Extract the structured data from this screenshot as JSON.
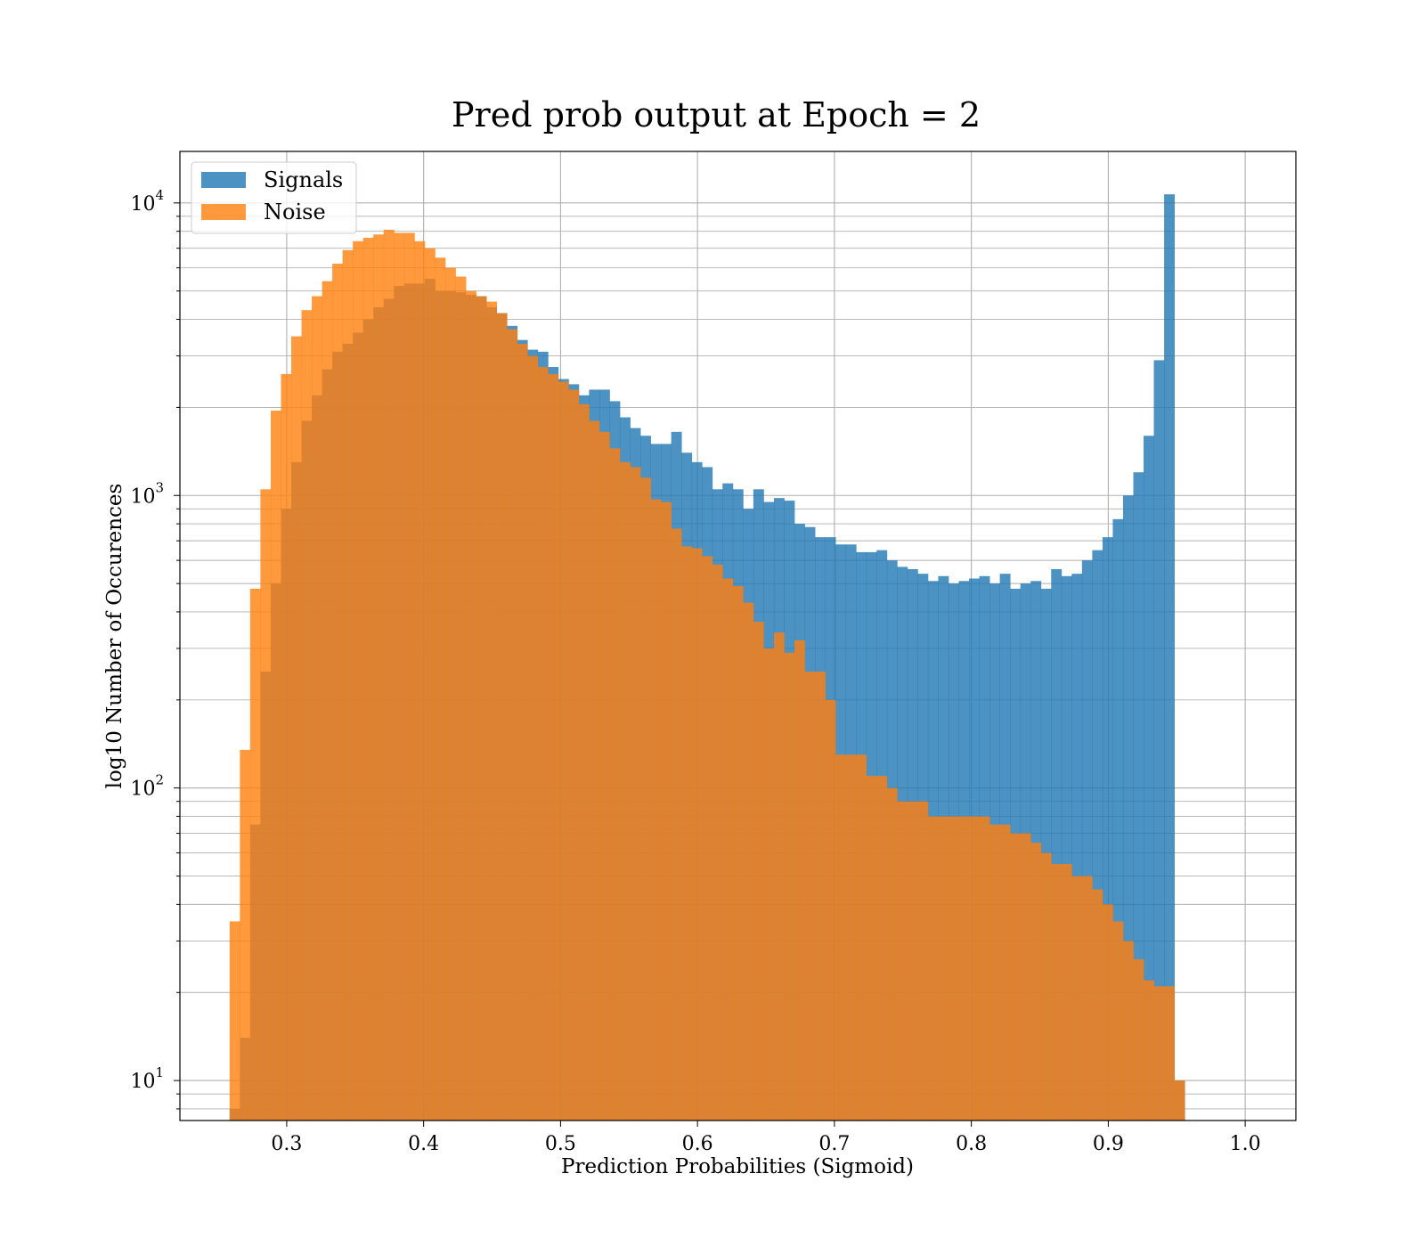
{
  "chart_data": {
    "type": "bar",
    "title": "Pred prob output at Epoch = 2",
    "xlabel": "Prediction Probabilities (Sigmoid)",
    "ylabel": "log10 Number of Occurences",
    "yscale": "log",
    "xlim": [
      0.222,
      1.037
    ],
    "ylim": [
      7.3,
      15000
    ],
    "grid": true,
    "legend_position": "top-left",
    "x_ticks": [
      "0.3",
      "0.4",
      "0.5",
      "0.6",
      "0.7",
      "0.8",
      "0.9",
      "1.0"
    ],
    "x_tick_values": [
      0.3,
      0.4,
      0.5,
      0.6,
      0.7,
      0.8,
      0.9,
      1.0
    ],
    "y_ticks": [
      {
        "value": 10,
        "base": "10",
        "exp": "1"
      },
      {
        "value": 100,
        "base": "10",
        "exp": "2"
      },
      {
        "value": 1000,
        "base": "10",
        "exp": "3"
      },
      {
        "value": 10000,
        "base": "10",
        "exp": "4"
      }
    ],
    "series": [
      {
        "name": "Signals",
        "color": "#1f77b4",
        "opacity": 0.8,
        "x_start": 0.2583,
        "bin_width": 0.0075,
        "values": [
          8,
          14,
          75,
          250,
          500,
          900,
          1300,
          1800,
          2200,
          2700,
          3100,
          3300,
          3600,
          4000,
          4400,
          4700,
          5200,
          5300,
          5300,
          5500,
          5000,
          5000,
          4950,
          4850,
          4800,
          4400,
          4200,
          3800,
          3400,
          3150,
          3100,
          2750,
          2500,
          2400,
          2200,
          2300,
          2300,
          2100,
          1850,
          1700,
          1600,
          1500,
          1500,
          1650,
          1400,
          1300,
          1250,
          1050,
          1100,
          1050,
          900,
          1050,
          950,
          980,
          960,
          800,
          780,
          720,
          720,
          680,
          680,
          640,
          640,
          650,
          600,
          570,
          560,
          540,
          510,
          530,
          500,
          510,
          520,
          530,
          500,
          540,
          480,
          500,
          510,
          480,
          560,
          530,
          540,
          600,
          650,
          720,
          830,
          1000,
          1200,
          1600,
          2900,
          10700,
          10
        ]
      },
      {
        "name": "Noise",
        "color": "#ff7f0e",
        "opacity": 0.8,
        "x_start": 0.2583,
        "bin_width": 0.0075,
        "values": [
          35,
          135,
          480,
          1050,
          1950,
          2600,
          3500,
          4300,
          4800,
          5400,
          6200,
          6900,
          7400,
          7600,
          7800,
          8100,
          7900,
          7900,
          7400,
          7000,
          6500,
          6000,
          5600,
          5000,
          4800,
          4600,
          4200,
          3700,
          3300,
          3000,
          2750,
          2600,
          2450,
          2300,
          2050,
          1800,
          1650,
          1450,
          1300,
          1250,
          1150,
          970,
          950,
          770,
          670,
          660,
          620,
          580,
          520,
          490,
          430,
          370,
          300,
          340,
          290,
          320,
          250,
          250,
          200,
          130,
          130,
          130,
          110,
          110,
          100,
          90,
          90,
          90,
          80,
          80,
          80,
          80,
          80,
          80,
          75,
          75,
          70,
          70,
          65,
          60,
          55,
          55,
          50,
          50,
          45,
          40,
          35,
          30,
          26,
          22,
          21,
          21,
          10
        ]
      }
    ]
  }
}
